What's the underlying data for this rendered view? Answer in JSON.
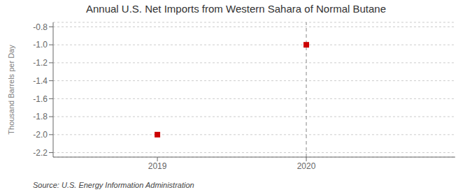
{
  "chart_data": {
    "type": "scatter",
    "title": "Annual U.S. Net Imports from Western Sahara of Normal Butane",
    "y_label": "Thousand Barrels per Day",
    "annotation": "Source: U.S. Energy Information Administration",
    "x": [
      2019,
      2020
    ],
    "values": [
      -2.0,
      -1.0
    ],
    "color": "#cc0000",
    "marker": "square",
    "xlim": [
      2018.3,
      2021.0
    ],
    "ylim": [
      -2.25,
      -0.75
    ],
    "xticks": [
      2019,
      2020
    ],
    "yticks": [
      -0.8,
      {
        "value": -1.0,
        "label": "-1.0"
      },
      -1.2,
      -1.4,
      -1.6,
      -1.8,
      {
        "value": -2.0,
        "label": "-2.0"
      },
      -2.2
    ],
    "grid": true,
    "vline": 2020
  }
}
